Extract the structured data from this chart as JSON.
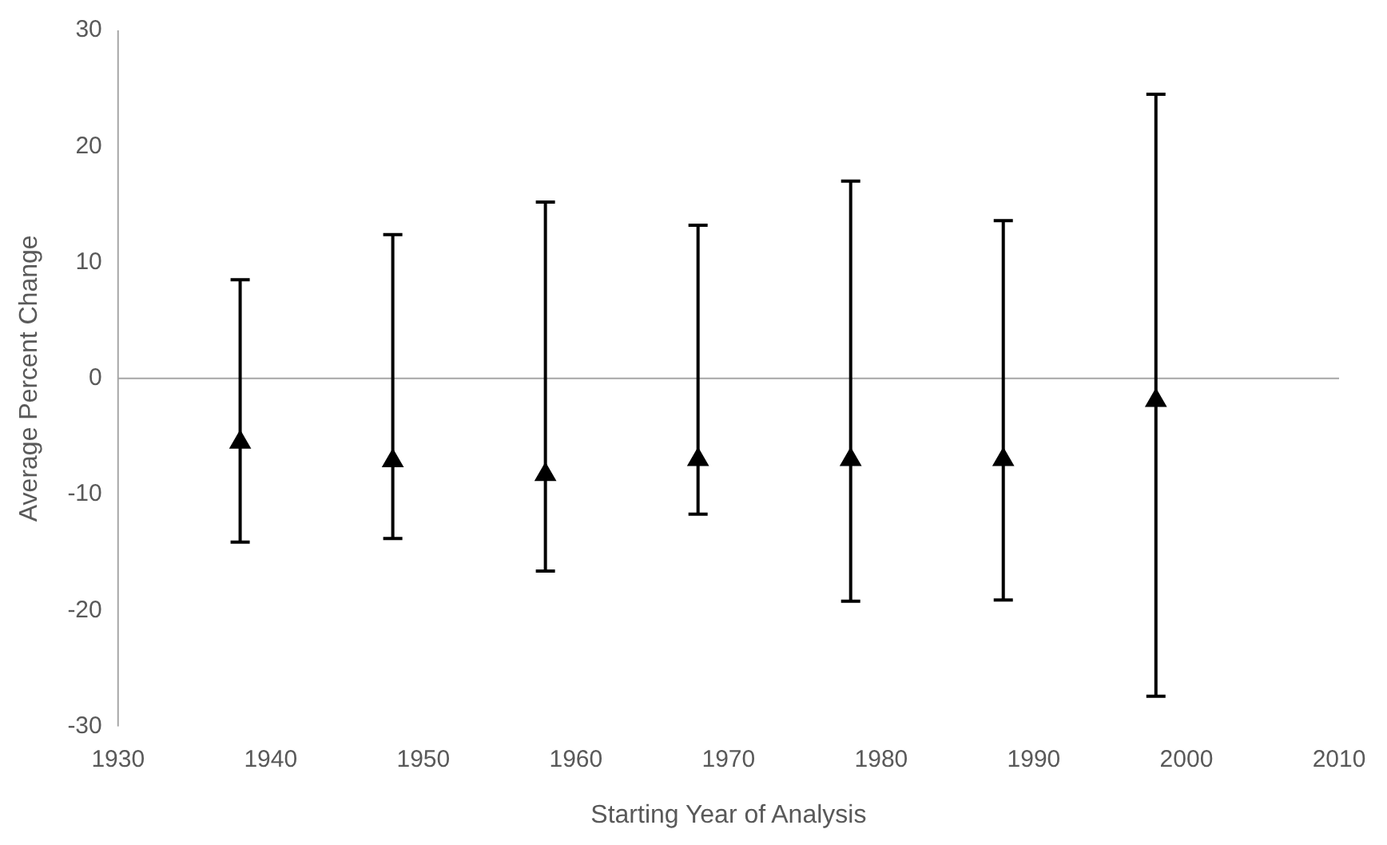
{
  "chart_data": {
    "type": "scatter",
    "xlabel": "Starting Year of Analysis",
    "ylabel": "Average Percent Change",
    "x": [
      1938,
      1948,
      1958,
      1968,
      1978,
      1988,
      1998
    ],
    "series": [
      {
        "color": "#000000",
        "values": [
          -5.5,
          -7.1,
          -8.3,
          -7.0,
          -7.0,
          -7.0,
          -1.9
        ],
        "errors": [
          [
            -14.1,
            8.5
          ],
          [
            -13.8,
            12.4
          ],
          [
            -16.6,
            15.2
          ],
          [
            -11.7,
            13.2
          ],
          [
            -19.2,
            17.0
          ],
          [
            -19.1,
            13.6
          ],
          [
            -27.4,
            24.5
          ]
        ]
      }
    ],
    "xlim": [
      1930,
      2010
    ],
    "xticks": [
      1930,
      1940,
      1950,
      1960,
      1970,
      1980,
      1990,
      2000,
      2010
    ],
    "ylim": [
      -30,
      30
    ],
    "yticks": [
      -30,
      -20,
      -10,
      0,
      10,
      20,
      30
    ],
    "ref_lines": [
      {
        "axis": "y",
        "value": 0,
        "color": "#a6a6a6"
      }
    ],
    "marker": "triangle",
    "legend": false,
    "grid": false
  }
}
